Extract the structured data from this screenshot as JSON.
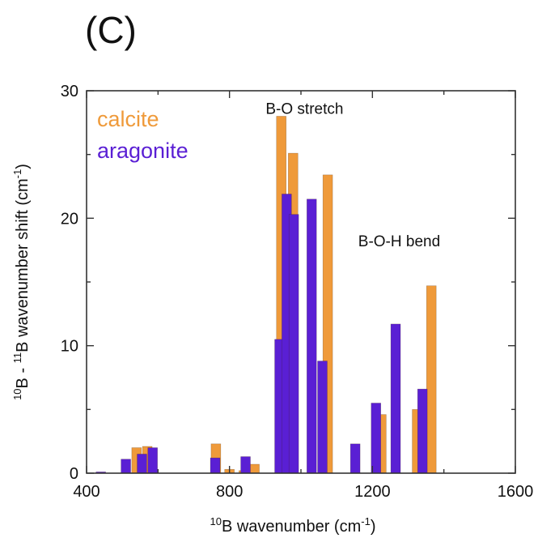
{
  "panel_label": "(C)",
  "colors": {
    "calcite": "#ef9a3a",
    "aragonite": "#5a1fd4",
    "axis": "#333333"
  },
  "chart_data": {
    "type": "bar",
    "xlabel": {
      "sup": "10",
      "main": "B wavenumber (cm",
      "unit_sup": "-1",
      "close": ")"
    },
    "ylabel": {
      "sup1": "10",
      "mid": "B - ",
      "sup2": "11",
      "main": "B wavenumber shift (cm",
      "unit_sup": "-1",
      "close": ")"
    },
    "xlim": [
      400,
      1600
    ],
    "ylim": [
      0,
      30
    ],
    "xticks": [
      "400",
      "800",
      "1200",
      "1600"
    ],
    "yticks": [
      "0",
      "10",
      "20",
      "30"
    ],
    "legend_position": "top-left",
    "annotations": [
      {
        "text": "B-O stretch",
        "x": 1010,
        "y": 28.2
      },
      {
        "text": "B-O-H bend",
        "x": 1275,
        "y": 17.8
      }
    ],
    "series": [
      {
        "name": "calcite",
        "bar_width": 27,
        "points": [
          {
            "x": 540,
            "y": 2.0
          },
          {
            "x": 570,
            "y": 2.1
          },
          {
            "x": 762,
            "y": 2.3
          },
          {
            "x": 800,
            "y": 0.3
          },
          {
            "x": 840,
            "y": 0.2
          },
          {
            "x": 870,
            "y": 0.7
          },
          {
            "x": 945,
            "y": 28.0
          },
          {
            "x": 978,
            "y": 25.1
          },
          {
            "x": 1075,
            "y": 23.4
          },
          {
            "x": 1225,
            "y": 4.6
          },
          {
            "x": 1325,
            "y": 5.0
          },
          {
            "x": 1365,
            "y": 14.7
          }
        ]
      },
      {
        "name": "aragonite",
        "bar_width": 27,
        "points": [
          {
            "x": 440,
            "y": 0.1
          },
          {
            "x": 510,
            "y": 1.1
          },
          {
            "x": 555,
            "y": 1.5
          },
          {
            "x": 585,
            "y": 2.0
          },
          {
            "x": 760,
            "y": 1.2
          },
          {
            "x": 845,
            "y": 1.3
          },
          {
            "x": 940,
            "y": 10.5
          },
          {
            "x": 960,
            "y": 21.9
          },
          {
            "x": 980,
            "y": 20.3
          },
          {
            "x": 1030,
            "y": 21.5
          },
          {
            "x": 1060,
            "y": 8.8
          },
          {
            "x": 1152,
            "y": 2.3
          },
          {
            "x": 1210,
            "y": 5.5
          },
          {
            "x": 1265,
            "y": 11.7
          },
          {
            "x": 1340,
            "y": 6.6
          }
        ]
      }
    ]
  }
}
